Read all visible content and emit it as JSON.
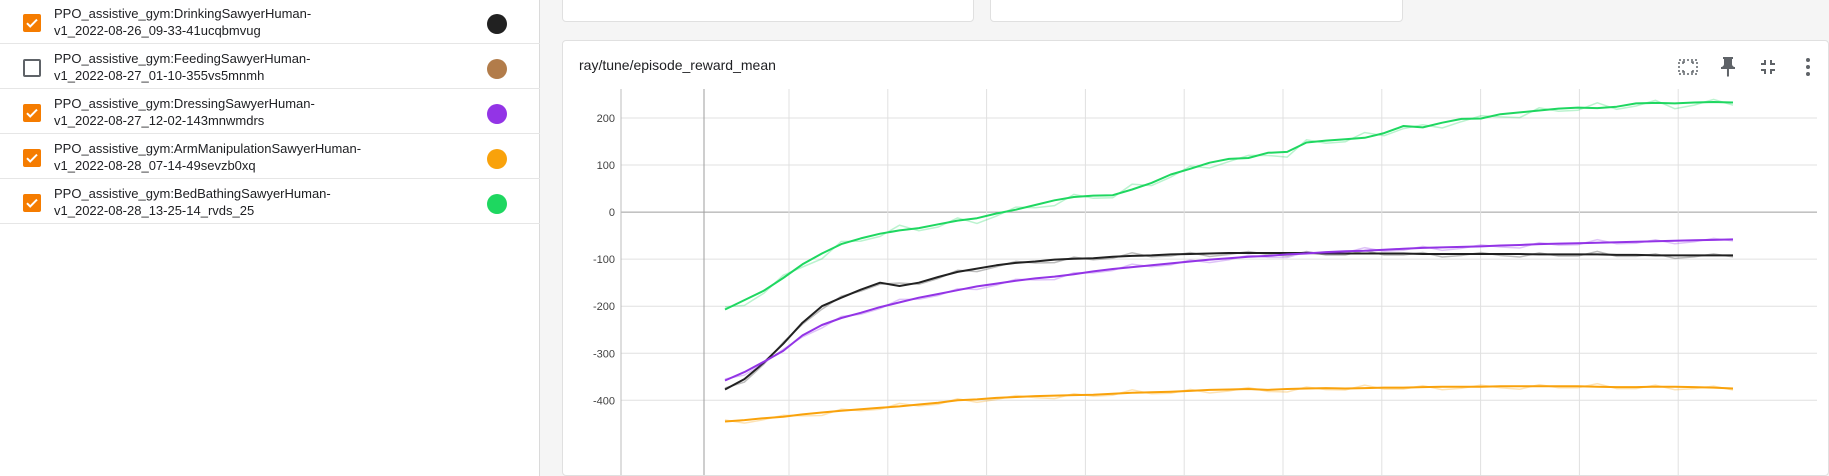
{
  "runs": [
    {
      "name": "PPO_assistive_gym:DrinkingSawyerHuman-\nv1_2022-08-26_09-33-41ucqbmvug",
      "checked": true,
      "color": "#212121"
    },
    {
      "name": "PPO_assistive_gym:FeedingSawyerHuman-\nv1_2022-08-27_01-10-355vs5mnmh",
      "checked": false,
      "color": "#b27c4a"
    },
    {
      "name": "PPO_assistive_gym:DressingSawyerHuman-\nv1_2022-08-27_12-02-143mnwmdrs",
      "checked": true,
      "color": "#9334e6"
    },
    {
      "name": "PPO_assistive_gym:ArmManipulationSawyerHuman-\nv1_2022-08-28_07-14-49sevzb0xq",
      "checked": true,
      "color": "#f9a20b"
    },
    {
      "name": "PPO_assistive_gym:BedBathingSawyerHuman-\nv1_2022-08-28_13-25-14_rvds_25",
      "checked": true,
      "color": "#1ed760"
    }
  ],
  "card": {
    "title": "ray/tune/episode_reward_mean"
  },
  "toolbar": {
    "icons": [
      "fit-domain-icon",
      "pin-icon",
      "collapse-icon",
      "more-vert-icon"
    ]
  },
  "chart_data": {
    "type": "line",
    "title": "ray/tune/episode_reward_mean",
    "xlabel": "",
    "ylabel": "",
    "ylim": [
      -445,
      250
    ],
    "y_ticks": [
      "200",
      "100",
      "0",
      "-100",
      "-200",
      "-300",
      "-400"
    ],
    "grid": true,
    "legend": "none",
    "series": [
      {
        "color": "#1ed760",
        "values": [
          -207,
          -187,
          -167,
          -140,
          -111,
          -88,
          -68,
          -56,
          -46,
          -39,
          -34,
          -26,
          -18,
          -13,
          -3,
          5,
          15,
          25,
          32,
          35,
          36,
          48,
          62,
          80,
          92,
          105,
          113,
          115,
          126,
          128,
          148,
          152,
          155,
          158,
          168,
          183,
          180,
          190,
          198,
          199,
          208,
          212,
          216,
          220,
          222,
          221,
          224,
          231,
          232,
          231,
          233,
          234,
          233
        ]
      },
      {
        "color": "#212121",
        "values": [
          -377,
          -355,
          -320,
          -280,
          -235,
          -200,
          -182,
          -165,
          -150,
          -157,
          -150,
          -138,
          -127,
          -120,
          -113,
          -108,
          -105,
          -101,
          -99,
          -98,
          -95,
          -93,
          -92,
          -90,
          -89,
          -88,
          -87,
          -87,
          -87,
          -87,
          -87,
          -88,
          -88,
          -88,
          -88,
          -88,
          -89,
          -89,
          -89,
          -89,
          -89,
          -89,
          -90,
          -90,
          -90,
          -90,
          -91,
          -91,
          -92,
          -92,
          -92,
          -92,
          -92
        ]
      },
      {
        "color": "#9334e6",
        "values": [
          -358,
          -340,
          -318,
          -295,
          -262,
          -240,
          -225,
          -214,
          -202,
          -192,
          -182,
          -174,
          -166,
          -158,
          -152,
          -146,
          -141,
          -137,
          -132,
          -126,
          -121,
          -117,
          -113,
          -109,
          -105,
          -101,
          -98,
          -95,
          -93,
          -90,
          -88,
          -85,
          -83,
          -82,
          -80,
          -78,
          -76,
          -75,
          -74,
          -73,
          -71,
          -70,
          -68,
          -67,
          -66,
          -65,
          -64,
          -63,
          -62,
          -61,
          -60,
          -59,
          -58
        ]
      },
      {
        "color": "#f9a20b",
        "values": [
          -445,
          -442,
          -438,
          -435,
          -430,
          -426,
          -422,
          -419,
          -416,
          -413,
          -409,
          -405,
          -400,
          -398,
          -395,
          -393,
          -391,
          -390,
          -389,
          -388,
          -386,
          -384,
          -383,
          -382,
          -380,
          -378,
          -377,
          -376,
          -378,
          -376,
          -375,
          -374,
          -375,
          -374,
          -373,
          -373,
          -372,
          -371,
          -371,
          -371,
          -370,
          -370,
          -370,
          -370,
          -370,
          -371,
          -372,
          -372,
          -371,
          -371,
          -372,
          -373,
          -375
        ]
      }
    ]
  }
}
